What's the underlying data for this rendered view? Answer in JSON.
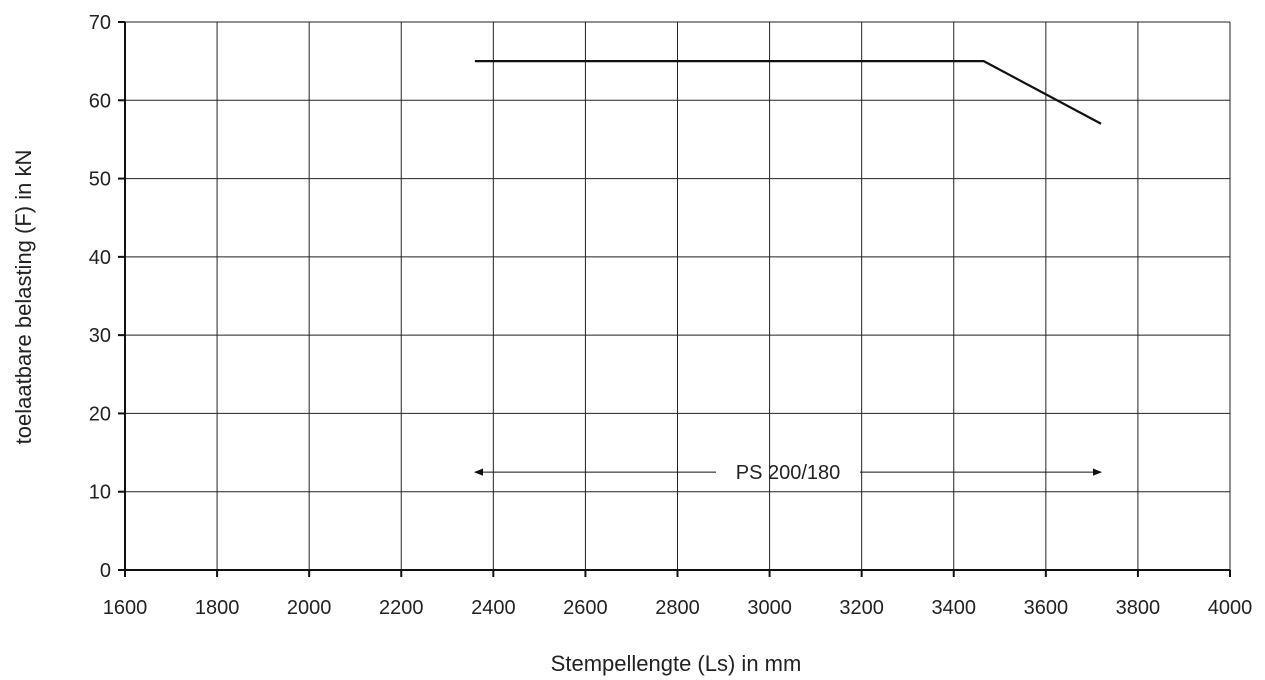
{
  "chart_data": {
    "type": "line",
    "xlabel": "Stempellengte (Ls) in mm",
    "ylabel": "toelaatbare belasting (F) in kN",
    "xlim": [
      1600,
      4000
    ],
    "ylim": [
      0,
      70
    ],
    "x_ticks": [
      1600,
      1800,
      2000,
      2200,
      2400,
      2600,
      2800,
      3000,
      3200,
      3400,
      3600,
      3800,
      4000
    ],
    "y_ticks": [
      0,
      10,
      20,
      30,
      40,
      50,
      60,
      70
    ],
    "grid": true,
    "series": [
      {
        "x": [
          2360,
          3465,
          3720
        ],
        "y": [
          65,
          65,
          57
        ],
        "color": "#111111"
      }
    ],
    "annotations": [
      {
        "text": "PS 200/180",
        "x_start": 2360,
        "x_end": 3720,
        "y": 12.5
      }
    ]
  }
}
